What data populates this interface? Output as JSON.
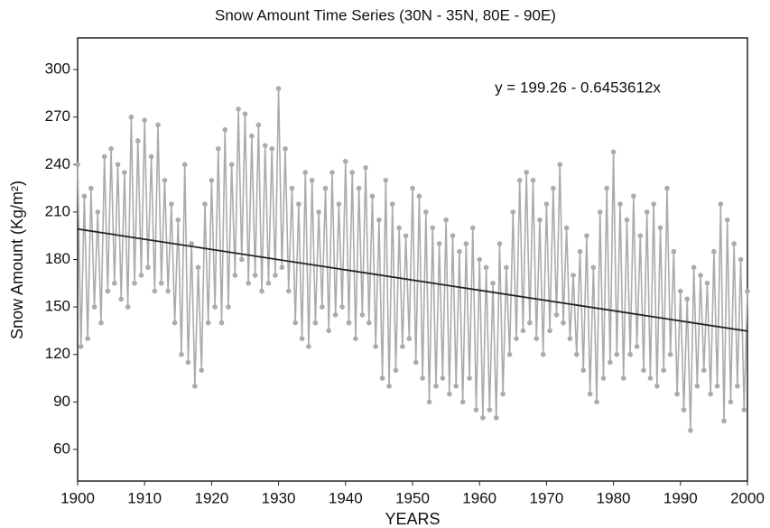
{
  "chart_data": {
    "type": "line",
    "title": "Snow Amount Time Series (30N - 35N, 80E - 90E)",
    "annotation": "y = 199.26 - 0.6453612x",
    "x_label": "YEARS",
    "y_label": "Snow Amount (Kg/m²)",
    "xlim": [
      1900,
      2000
    ],
    "xticks": [
      1900,
      1910,
      1920,
      1930,
      1940,
      1950,
      1960,
      1970,
      1980,
      1990,
      2000
    ],
    "ylim": [
      40,
      320
    ],
    "yticks": [
      60,
      90,
      120,
      150,
      180,
      210,
      240,
      270,
      300
    ],
    "series": [
      {
        "color": "#ababab",
        "markers": true,
        "x": [
          1900,
          1900.5,
          1901,
          1901.5,
          1902,
          1902.5,
          1903,
          1903.5,
          1904,
          1904.5,
          1905,
          1905.5,
          1906,
          1906.5,
          1907,
          1907.5,
          1908,
          1908.5,
          1909,
          1909.5,
          1910,
          1910.5,
          1911,
          1911.5,
          1912,
          1912.5,
          1913,
          1913.5,
          1914,
          1914.5,
          1915,
          1915.5,
          1916,
          1916.5,
          1917,
          1917.5,
          1918,
          1918.5,
          1919,
          1919.5,
          1920,
          1920.5,
          1921,
          1921.5,
          1922,
          1922.5,
          1923,
          1923.5,
          1924,
          1924.5,
          1925,
          1925.5,
          1926,
          1926.5,
          1927,
          1927.5,
          1928,
          1928.5,
          1929,
          1929.5,
          1930,
          1930.5,
          1931,
          1931.5,
          1932,
          1932.5,
          1933,
          1933.5,
          1934,
          1934.5,
          1935,
          1935.5,
          1936,
          1936.5,
          1937,
          1937.5,
          1938,
          1938.5,
          1939,
          1939.5,
          1940,
          1940.5,
          1941,
          1941.5,
          1942,
          1942.5,
          1943,
          1943.5,
          1944,
          1944.5,
          1945,
          1945.5,
          1946,
          1946.5,
          1947,
          1947.5,
          1948,
          1948.5,
          1949,
          1949.5,
          1950,
          1950.5,
          1951,
          1951.5,
          1952,
          1952.5,
          1953,
          1953.5,
          1954,
          1954.5,
          1955,
          1955.5,
          1956,
          1956.5,
          1957,
          1957.5,
          1958,
          1958.5,
          1959,
          1959.5,
          1960,
          1960.5,
          1961,
          1961.5,
          1962,
          1962.5,
          1963,
          1963.5,
          1964,
          1964.5,
          1965,
          1965.5,
          1966,
          1966.5,
          1967,
          1967.5,
          1968,
          1968.5,
          1969,
          1969.5,
          1970,
          1970.5,
          1971,
          1971.5,
          1972,
          1972.5,
          1973,
          1973.5,
          1974,
          1974.5,
          1975,
          1975.5,
          1976,
          1976.5,
          1977,
          1977.5,
          1978,
          1978.5,
          1979,
          1979.5,
          1980,
          1980.5,
          1981,
          1981.5,
          1982,
          1982.5,
          1983,
          1983.5,
          1984,
          1984.5,
          1985,
          1985.5,
          1986,
          1986.5,
          1987,
          1987.5,
          1988,
          1988.5,
          1989,
          1989.5,
          1990,
          1990.5,
          1991,
          1991.5,
          1992,
          1992.5,
          1993,
          1993.5,
          1994,
          1994.5,
          1995,
          1995.5,
          1996,
          1996.5,
          1997,
          1997.5,
          1998,
          1998.5,
          1999,
          1999.5,
          2000
        ],
        "values": [
          240,
          125,
          220,
          130,
          225,
          150,
          210,
          140,
          245,
          160,
          250,
          165,
          240,
          155,
          235,
          150,
          270,
          165,
          255,
          170,
          268,
          175,
          245,
          160,
          265,
          165,
          230,
          160,
          215,
          140,
          205,
          120,
          240,
          115,
          190,
          100,
          175,
          110,
          215,
          140,
          230,
          150,
          250,
          140,
          262,
          150,
          240,
          170,
          275,
          180,
          272,
          165,
          258,
          170,
          265,
          160,
          252,
          165,
          250,
          170,
          288,
          175,
          250,
          160,
          225,
          140,
          215,
          130,
          235,
          125,
          230,
          140,
          210,
          150,
          225,
          135,
          235,
          145,
          215,
          150,
          242,
          140,
          235,
          130,
          225,
          145,
          238,
          140,
          220,
          125,
          205,
          105,
          230,
          100,
          215,
          110,
          200,
          125,
          195,
          130,
          225,
          115,
          220,
          105,
          210,
          90,
          200,
          100,
          190,
          105,
          205,
          95,
          195,
          100,
          185,
          90,
          190,
          105,
          200,
          85,
          180,
          80,
          175,
          85,
          165,
          80,
          190,
          95,
          175,
          120,
          210,
          130,
          230,
          135,
          235,
          140,
          230,
          130,
          205,
          120,
          215,
          135,
          225,
          145,
          240,
          140,
          200,
          130,
          170,
          120,
          185,
          110,
          195,
          95,
          175,
          90,
          210,
          105,
          225,
          115,
          248,
          120,
          215,
          105,
          205,
          120,
          220,
          125,
          195,
          110,
          210,
          105,
          215,
          100,
          200,
          110,
          225,
          120,
          185,
          95,
          160,
          85,
          155,
          72,
          175,
          100,
          170,
          110,
          165,
          95,
          185,
          100,
          215,
          78,
          205,
          90,
          190,
          100,
          180,
          85,
          160
        ]
      },
      {
        "color": "#222222",
        "markers": false,
        "x": [
          1900,
          2000
        ],
        "values": [
          199.26,
          134.72
        ]
      }
    ]
  }
}
